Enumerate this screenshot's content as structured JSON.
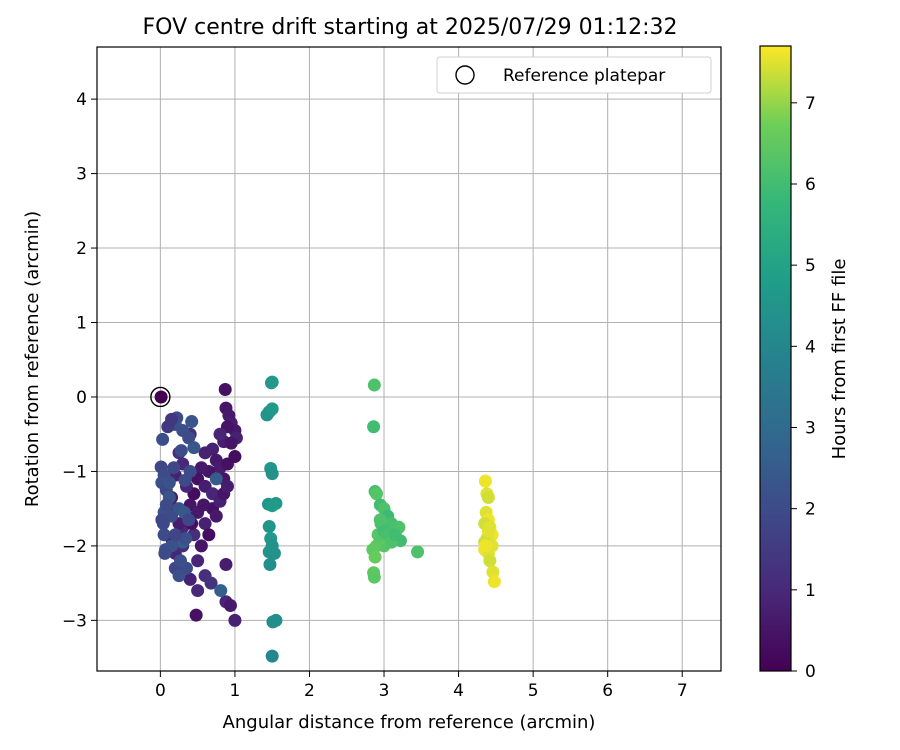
{
  "chart_data": {
    "type": "scatter",
    "title": "FOV centre drift starting at 2025/07/29 01:12:32",
    "xlabel": "Angular distance from reference (arcmin)",
    "ylabel": "Rotation from reference (arcmin)",
    "xlim": [
      -0.85,
      7.52
    ],
    "ylim": [
      -3.68,
      4.7
    ],
    "xticks": [
      0,
      1,
      2,
      3,
      4,
      5,
      6,
      7
    ],
    "yticks": [
      -3,
      -2,
      -1,
      0,
      1,
      2,
      3,
      4
    ],
    "grid": true,
    "legend": {
      "placement": "top-right",
      "entries": [
        {
          "label": "Reference platepar",
          "marker": "open-circle"
        }
      ]
    },
    "reference_point": {
      "x": 0,
      "y": 0
    },
    "colorbar": {
      "label": "Hours from first FF file",
      "colormap": "viridis",
      "range": [
        0,
        7.7
      ],
      "ticks": [
        0,
        1,
        2,
        3,
        4,
        5,
        6,
        7
      ]
    },
    "points": [
      [
        0.87,
        0.1,
        0.4
      ],
      [
        0.88,
        -0.15,
        0.5
      ],
      [
        0.92,
        -0.25,
        0.6
      ],
      [
        0.95,
        -0.35,
        0.7
      ],
      [
        1.0,
        -0.45,
        0.6
      ],
      [
        1.02,
        -0.55,
        0.8
      ],
      [
        0.9,
        -0.4,
        0.5
      ],
      [
        0.85,
        -0.6,
        0.7
      ],
      [
        0.8,
        -0.5,
        0.9
      ],
      [
        0.95,
        -0.62,
        0.5
      ],
      [
        0.7,
        -0.7,
        0.8
      ],
      [
        0.75,
        -0.85,
        0.6
      ],
      [
        0.8,
        -0.95,
        0.7
      ],
      [
        0.9,
        -0.9,
        0.4
      ],
      [
        1.0,
        -0.8,
        0.3
      ],
      [
        0.65,
        -1.0,
        0.5
      ],
      [
        0.55,
        -0.95,
        0.6
      ],
      [
        0.5,
        -1.1,
        0.4
      ],
      [
        0.6,
        -1.2,
        0.7
      ],
      [
        0.7,
        -1.3,
        0.9
      ],
      [
        0.85,
        -1.1,
        0.5
      ],
      [
        0.45,
        -1.3,
        0.3
      ],
      [
        0.4,
        -1.45,
        0.5
      ],
      [
        0.5,
        -1.55,
        0.6
      ],
      [
        0.6,
        -1.7,
        0.8
      ],
      [
        0.7,
        -1.5,
        0.4
      ],
      [
        0.35,
        -1.6,
        0.7
      ],
      [
        0.3,
        -1.75,
        1.0
      ],
      [
        0.45,
        -1.85,
        1.1
      ],
      [
        0.55,
        -2.0,
        0.5
      ],
      [
        0.65,
        -1.85,
        0.3
      ],
      [
        0.75,
        -1.6,
        0.6
      ],
      [
        0.8,
        -1.4,
        0.8
      ],
      [
        0.85,
        -1.3,
        0.5
      ],
      [
        0.9,
        -1.2,
        0.7
      ],
      [
        0.5,
        -2.2,
        0.9
      ],
      [
        0.6,
        -2.4,
        1.2
      ],
      [
        0.4,
        -2.45,
        0.8
      ],
      [
        0.3,
        -2.3,
        0.6
      ],
      [
        0.2,
        -2.1,
        0.9
      ],
      [
        0.48,
        -2.93,
        0.4
      ],
      [
        0.88,
        -2.25,
        0.7
      ],
      [
        0.88,
        -2.75,
        0.9
      ],
      [
        0.94,
        -2.8,
        0.6
      ],
      [
        1.0,
        -3.0,
        0.8
      ],
      [
        0.68,
        -2.5,
        1.3
      ],
      [
        0.5,
        -2.6,
        1.0
      ],
      [
        0.3,
        -2.0,
        1.1
      ],
      [
        0.2,
        -1.5,
        1.2
      ],
      [
        0.35,
        -1.2,
        0.9
      ],
      [
        0.3,
        -0.9,
        1.0
      ],
      [
        0.25,
        -0.75,
        1.1
      ],
      [
        0.4,
        -0.5,
        1.2
      ],
      [
        0.6,
        -0.75,
        0.8
      ],
      [
        0.15,
        -1.9,
        0.3
      ],
      [
        0.15,
        -1.35,
        0.6
      ],
      [
        0.2,
        -1.05,
        0.8
      ],
      [
        0.25,
        -1.7,
        0.7
      ],
      [
        0.58,
        -1.45,
        0.5
      ],
      [
        0.42,
        -1.7,
        0.4
      ],
      [
        0.01,
        -0.94,
        1.9
      ],
      [
        0.05,
        -1.05,
        2.0
      ],
      [
        0.02,
        -1.15,
        2.1
      ],
      [
        0.08,
        -1.25,
        1.9
      ],
      [
        0.05,
        -1.55,
        2.2
      ],
      [
        0.04,
        -1.7,
        1.9
      ],
      [
        0.05,
        -1.85,
        2.0
      ],
      [
        0.07,
        -2.05,
        2.1
      ],
      [
        0.12,
        -1.35,
        2.3
      ],
      [
        0.15,
        -1.6,
        2.0
      ],
      [
        0.2,
        -2.3,
        1.8
      ],
      [
        0.25,
        -2.4,
        2.1
      ],
      [
        0.35,
        -2.3,
        2.0
      ],
      [
        0.22,
        -0.28,
        2.0
      ],
      [
        0.2,
        -0.37,
        2.2
      ],
      [
        0.3,
        -0.45,
        2.1
      ],
      [
        0.38,
        -0.55,
        2.0
      ],
      [
        0.42,
        -0.33,
        2.3
      ],
      [
        0.03,
        -0.57,
        2.1
      ],
      [
        0.45,
        -0.68,
        2.4
      ],
      [
        0.28,
        -0.72,
        2.0
      ],
      [
        0.3,
        -1.95,
        2.5
      ],
      [
        0.25,
        -1.5,
        2.2
      ],
      [
        0.32,
        -1.55,
        2.4
      ],
      [
        0.38,
        -1.65,
        1.9
      ],
      [
        0.34,
        -1.9,
        2.1
      ],
      [
        0.15,
        -2.0,
        2.2
      ],
      [
        0.06,
        -2.1,
        2.0
      ],
      [
        0.2,
        -1.85,
        1.8
      ],
      [
        0.27,
        -2.2,
        2.1
      ],
      [
        0.81,
        -2.6,
        2.6
      ],
      [
        0.75,
        -1.1,
        2.5
      ],
      [
        0.4,
        -1.0,
        2.0
      ],
      [
        0.18,
        -0.95,
        1.9
      ],
      [
        0.12,
        -1.15,
        2.2
      ],
      [
        0.08,
        -1.45,
        2.0
      ],
      [
        0.02,
        -1.65,
        1.9
      ],
      [
        0.1,
        -0.4,
        1.5
      ],
      [
        0.15,
        -0.3,
        1.4
      ],
      [
        0.33,
        -1.12,
        2.0
      ],
      [
        0.01,
        0.0,
        0.0
      ],
      [
        1.49,
        0.19,
        4.5
      ],
      [
        1.5,
        0.2,
        4.6
      ],
      [
        1.46,
        -0.2,
        4.4
      ],
      [
        1.43,
        -0.24,
        4.5
      ],
      [
        1.5,
        -0.16,
        4.6
      ],
      [
        1.48,
        -0.96,
        4.5
      ],
      [
        1.5,
        -1.03,
        4.4
      ],
      [
        1.45,
        -1.44,
        4.5
      ],
      [
        1.55,
        -1.43,
        4.6
      ],
      [
        1.5,
        -1.46,
        4.7
      ],
      [
        1.46,
        -1.74,
        4.5
      ],
      [
        1.48,
        -1.9,
        4.6
      ],
      [
        1.5,
        -2.0,
        4.4
      ],
      [
        1.46,
        -2.08,
        4.5
      ],
      [
        1.53,
        -2.1,
        4.4
      ],
      [
        1.47,
        -2.25,
        4.3
      ],
      [
        1.51,
        -3.02,
        4.2
      ],
      [
        1.55,
        -3.0,
        4.3
      ],
      [
        1.5,
        -3.48,
        4.0
      ],
      [
        2.87,
        0.16,
        6.2
      ],
      [
        2.86,
        -0.4,
        6.0
      ],
      [
        2.88,
        -1.27,
        6.1
      ],
      [
        2.9,
        -1.3,
        6.3
      ],
      [
        2.95,
        -1.45,
        6.0
      ],
      [
        3.0,
        -1.5,
        6.2
      ],
      [
        3.05,
        -1.6,
        5.9
      ],
      [
        3.1,
        -1.7,
        6.1
      ],
      [
        3.2,
        -1.75,
        6.2
      ],
      [
        3.22,
        -1.93,
        6.0
      ],
      [
        3.45,
        -2.08,
        6.2
      ],
      [
        3.0,
        -2.0,
        6.3
      ],
      [
        2.95,
        -1.9,
        6.5
      ],
      [
        2.9,
        -2.0,
        6.4
      ],
      [
        2.85,
        -2.05,
        6.5
      ],
      [
        2.88,
        -2.15,
        6.6
      ],
      [
        2.86,
        -2.36,
        6.5
      ],
      [
        2.87,
        -2.42,
        6.4
      ],
      [
        2.92,
        -1.85,
        6.3
      ],
      [
        2.96,
        -1.7,
        6.1
      ],
      [
        3.0,
        -1.8,
        6.0
      ],
      [
        3.05,
        -1.85,
        6.1
      ],
      [
        3.1,
        -1.95,
        6.2
      ],
      [
        3.15,
        -1.85,
        6.0
      ],
      [
        2.95,
        -1.65,
        6.2
      ],
      [
        4.36,
        -1.13,
        7.6
      ],
      [
        4.38,
        -1.3,
        7.5
      ],
      [
        4.4,
        -1.35,
        7.4
      ],
      [
        4.37,
        -1.55,
        7.5
      ],
      [
        4.4,
        -1.65,
        7.6
      ],
      [
        4.35,
        -1.7,
        7.4
      ],
      [
        4.42,
        -1.75,
        7.5
      ],
      [
        4.45,
        -1.85,
        7.6
      ],
      [
        4.38,
        -1.9,
        7.5
      ],
      [
        4.35,
        -1.95,
        7.4
      ],
      [
        4.45,
        -2.0,
        7.5
      ],
      [
        4.35,
        -2.05,
        7.6
      ],
      [
        4.4,
        -2.1,
        7.5
      ],
      [
        4.42,
        -2.2,
        7.4
      ],
      [
        4.46,
        -2.35,
        7.5
      ],
      [
        4.48,
        -2.48,
        7.6
      ],
      [
        4.36,
        -2.0,
        7.6
      ],
      [
        4.4,
        -1.8,
        7.5
      ]
    ]
  }
}
